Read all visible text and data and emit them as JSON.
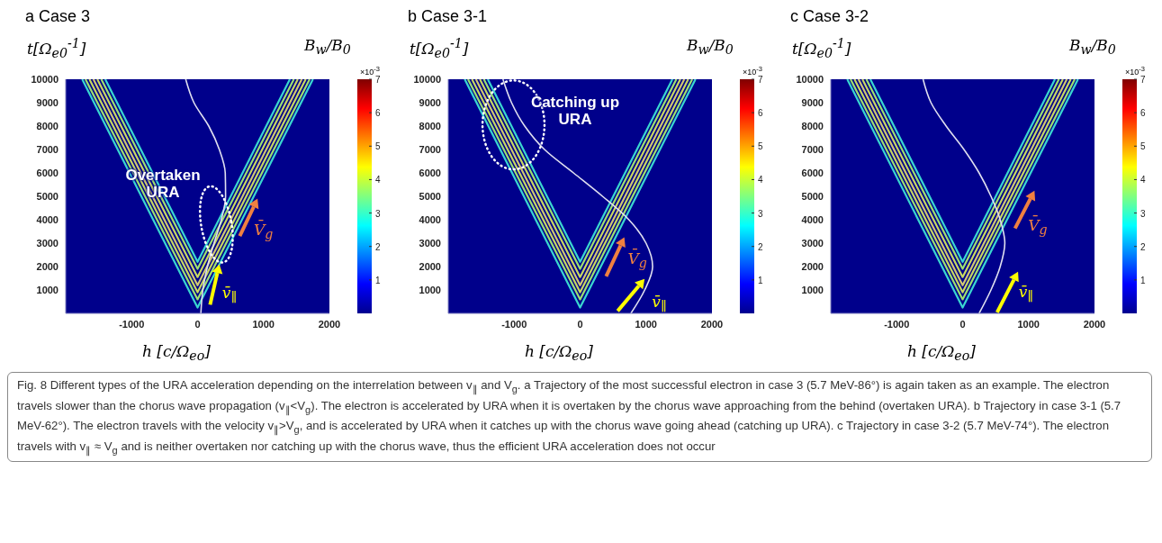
{
  "chart_data": [
    {
      "type": "line",
      "title": "a Case 3",
      "xlabel": "h [c/Ω$_{eo}$]",
      "ylabel": "t[Ω$_{e0}$$^{-1}$]",
      "clabel": "B$_{w}$/B$_{0}$",
      "clim": [
        0,
        7
      ],
      "cticks": [
        1,
        2,
        3,
        4,
        5,
        6,
        7
      ],
      "xlim": [
        -2000,
        2000
      ],
      "xticks": [
        -1000,
        0,
        1000,
        2000
      ],
      "ylim": [
        0,
        10000
      ],
      "yticks": [
        1000,
        2000,
        3000,
        4000,
        5000,
        6000,
        7000,
        8000,
        9000,
        10000
      ],
      "grid": false,
      "marker": "none",
      "line_style": "solid",
      "series": [
        {
          "color": "#3ad6d0",
          "x": [
            -1750,
            0,
            1750
          ],
          "values": [
            10000,
            250,
            10000
          ]
        },
        {
          "color": "#9ee070",
          "x": [
            -1700,
            0,
            1700
          ],
          "values": [
            10000,
            600,
            10000
          ]
        },
        {
          "color": "#c8d860",
          "x": [
            -1640,
            0,
            1640
          ],
          "values": [
            10000,
            900,
            10000
          ]
        },
        {
          "color": "#d0c870",
          "x": [
            -1580,
            0,
            1580
          ],
          "values": [
            10000,
            1200,
            10000
          ]
        },
        {
          "color": "#c8d860",
          "x": [
            -1520,
            0,
            1520
          ],
          "values": [
            10000,
            1550,
            10000
          ]
        },
        {
          "color": "#9ee070",
          "x": [
            -1460,
            0,
            1460
          ],
          "values": [
            10000,
            1900,
            10000
          ]
        },
        {
          "color": "#3ad6d0",
          "x": [
            -1400,
            0,
            1400
          ],
          "values": [
            10000,
            2200,
            10000
          ]
        },
        {
          "color": "#e0e0f0",
          "x": [
            50,
            80,
            150,
            250,
            360,
            425,
            420,
            330,
            170,
            -55,
            -180
          ],
          "values": [
            0,
            1000,
            2000,
            3000,
            4000,
            5000,
            6000,
            7000,
            8000,
            9000,
            10000
          ]
        }
      ],
      "annotations": [
        "×10$^{-3}$",
        "Overtaken URA",
        "V̄$_{g}$",
        "v̄$_{∥}$"
      ]
    },
    {
      "type": "line",
      "title": "b Case 3-1",
      "xlabel": "h [c/Ω$_{eo}$]",
      "ylabel": "t[Ω$_{e0}$$^{-1}$]",
      "clabel": "B$_{w}$/B$_{0}$",
      "clim": [
        0,
        7
      ],
      "cticks": [
        1,
        2,
        3,
        4,
        5,
        6,
        7
      ],
      "xlim": [
        -2000,
        2000
      ],
      "xticks": [
        -1000,
        0,
        1000,
        2000
      ],
      "ylim": [
        0,
        10000
      ],
      "yticks": [
        1000,
        2000,
        3000,
        4000,
        5000,
        6000,
        7000,
        8000,
        9000,
        10000
      ],
      "grid": false,
      "marker": "none",
      "line_style": "solid",
      "series": [
        {
          "color": "#3ad6d0",
          "x": [
            -1750,
            0,
            1750
          ],
          "values": [
            10000,
            250,
            10000
          ]
        },
        {
          "color": "#9ee070",
          "x": [
            -1700,
            0,
            1700
          ],
          "values": [
            10000,
            600,
            10000
          ]
        },
        {
          "color": "#c8d860",
          "x": [
            -1640,
            0,
            1640
          ],
          "values": [
            10000,
            900,
            10000
          ]
        },
        {
          "color": "#d0c870",
          "x": [
            -1580,
            0,
            1580
          ],
          "values": [
            10000,
            1200,
            10000
          ]
        },
        {
          "color": "#c8d860",
          "x": [
            -1520,
            0,
            1520
          ],
          "values": [
            10000,
            1550,
            10000
          ]
        },
        {
          "color": "#9ee070",
          "x": [
            -1460,
            0,
            1460
          ],
          "values": [
            10000,
            1900,
            10000
          ]
        },
        {
          "color": "#3ad6d0",
          "x": [
            -1400,
            0,
            1400
          ],
          "values": [
            10000,
            2200,
            10000
          ]
        },
        {
          "color": "#e0e0f0",
          "x": [
            770,
            980,
            1100,
            1000,
            740,
            340,
            -100,
            -540,
            -840,
            -1040,
            -1170
          ],
          "values": [
            0,
            1000,
            2000,
            3000,
            4000,
            5000,
            6000,
            7000,
            8000,
            9000,
            10000
          ]
        }
      ],
      "annotations": [
        "×10$^{-3}$",
        "Catching up URA",
        "V̄$_{g}$",
        "v̄$_{∥}$"
      ]
    },
    {
      "type": "line",
      "title": "c Case 3-2",
      "xlabel": "h [c/Ω$_{eo}$]",
      "ylabel": "t[Ω$_{e0}$$^{-1}$]",
      "clabel": "B$_{w}$/B$_{0}$",
      "clim": [
        0,
        7
      ],
      "cticks": [
        1,
        2,
        3,
        4,
        5,
        6,
        7
      ],
      "xlim": [
        -2000,
        2000
      ],
      "xticks": [
        -1000,
        0,
        1000,
        2000
      ],
      "ylim": [
        0,
        10000
      ],
      "yticks": [
        1000,
        2000,
        3000,
        4000,
        5000,
        6000,
        7000,
        8000,
        9000,
        10000
      ],
      "grid": false,
      "marker": "none",
      "line_style": "solid",
      "series": [
        {
          "color": "#3ad6d0",
          "x": [
            -1750,
            0,
            1750
          ],
          "values": [
            10000,
            250,
            10000
          ]
        },
        {
          "color": "#9ee070",
          "x": [
            -1700,
            0,
            1700
          ],
          "values": [
            10000,
            600,
            10000
          ]
        },
        {
          "color": "#c8d860",
          "x": [
            -1640,
            0,
            1640
          ],
          "values": [
            10000,
            900,
            10000
          ]
        },
        {
          "color": "#d0c870",
          "x": [
            -1580,
            0,
            1580
          ],
          "values": [
            10000,
            1200,
            10000
          ]
        },
        {
          "color": "#c8d860",
          "x": [
            -1520,
            0,
            1520
          ],
          "values": [
            10000,
            1550,
            10000
          ]
        },
        {
          "color": "#9ee070",
          "x": [
            -1460,
            0,
            1460
          ],
          "values": [
            10000,
            1900,
            10000
          ]
        },
        {
          "color": "#3ad6d0",
          "x": [
            -1400,
            0,
            1400
          ],
          "values": [
            10000,
            2200,
            10000
          ]
        },
        {
          "color": "#e0e0f0",
          "x": [
            250,
            430,
            570,
            640,
            570,
            430,
            250,
            20,
            -250,
            -480,
            -600
          ],
          "values": [
            0,
            1000,
            2000,
            3000,
            4000,
            5000,
            6000,
            7000,
            8000,
            9000,
            10000
          ]
        }
      ],
      "annotations": [
        "×10$^{-3}$",
        "V̄$_{g}$",
        "v̄$_{∥}$"
      ]
    },
    {
      "type": "other",
      "annotations": [
        "Fig. 8  Different types of the URA acceleration depending on the interrelation between v$_{∥}$ and V$_{g}$. a Trajectory of the most successful electron in case 3 (5.7 MeV-86°) is again taken as an example. The electron travels slower than the chorus wave propagation (v$_{∥}$<V$_{g}$). The electron is accelerated by URA when it is overtaken by the chorus wave approaching from the behind (overtaken URA). b Trajectory in case 3-1 (5.7 MeV-62°). The electron travels with the velocity v$_{∥}$>V$_{g}$, and is accelerated by URA when it catches up with the chorus wave going ahead (catching up URA). c Trajectory in case 3-2 (5.7 MeV-74°). The electron travels with v$_{∥}$ ≈ V$_{g}$ and is neither overtaken nor catching up with the chorus wave, thus the efficient URA acceleration does not occur"
      ]
    }
  ]
}
